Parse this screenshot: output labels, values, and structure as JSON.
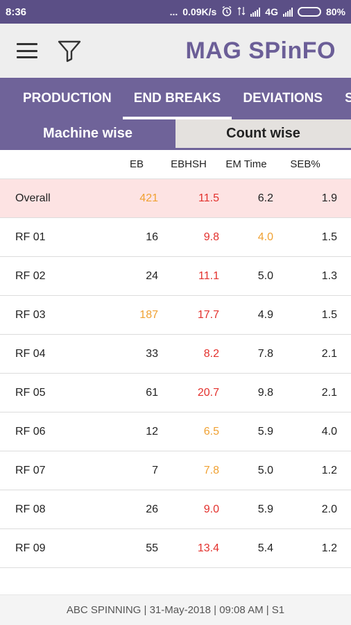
{
  "status": {
    "time": "8:36",
    "dots": "...",
    "speed": "0.09K/s",
    "network": "4G",
    "battery": "80%",
    "battery_level": 0.8
  },
  "app": {
    "title": "MAG SPinFO"
  },
  "tabs": [
    {
      "label": "PRODUCTION"
    },
    {
      "label": "END BREAKS"
    },
    {
      "label": "DEVIATIONS"
    },
    {
      "label": "S"
    }
  ],
  "segments": {
    "machine": "Machine wise",
    "count": "Count wise"
  },
  "table": {
    "headers": [
      "EB",
      "EBHSH",
      "EM Time",
      "SEB%"
    ],
    "rows": [
      {
        "name": "Overall",
        "eb": "421",
        "ebhsh": "11.5",
        "em": "6.2",
        "seb": "1.9"
      },
      {
        "name": "RF 01",
        "eb": "16",
        "ebhsh": "9.8",
        "em": "4.0",
        "seb": "1.5"
      },
      {
        "name": "RF 02",
        "eb": "24",
        "ebhsh": "11.1",
        "em": "5.0",
        "seb": "1.3"
      },
      {
        "name": "RF 03",
        "eb": "187",
        "ebhsh": "17.7",
        "em": "4.9",
        "seb": "1.5"
      },
      {
        "name": "RF 04",
        "eb": "33",
        "ebhsh": "8.2",
        "em": "7.8",
        "seb": "2.1"
      },
      {
        "name": "RF 05",
        "eb": "61",
        "ebhsh": "20.7",
        "em": "9.8",
        "seb": "2.1"
      },
      {
        "name": "RF 06",
        "eb": "12",
        "ebhsh": "6.5",
        "em": "5.9",
        "seb": "4.0"
      },
      {
        "name": "RF 07",
        "eb": "7",
        "ebhsh": "7.8",
        "em": "5.0",
        "seb": "1.2"
      },
      {
        "name": "RF 08",
        "eb": "26",
        "ebhsh": "9.0",
        "em": "5.9",
        "seb": "2.0"
      },
      {
        "name": "RF 09",
        "eb": "55",
        "ebhsh": "13.4",
        "em": "5.4",
        "seb": "1.2"
      }
    ]
  },
  "footer": {
    "text": "ABC SPINNING | 31-May-2018 | 09:08 AM | S1"
  },
  "colors": {
    "accent": "#6f6399",
    "orange": "#f0a132",
    "red": "#e3312d",
    "overall_bg": "#fde3e3"
  }
}
